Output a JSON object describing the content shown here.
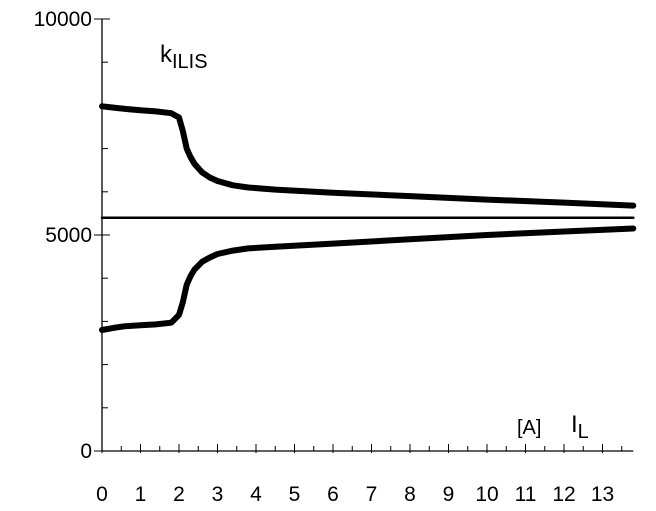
{
  "chart_data": {
    "type": "line",
    "title": "",
    "ylabel_main": "k",
    "ylabel_sub": "ILIS",
    "xunit": "[A]",
    "xlabel_main": "I",
    "xlabel_sub": "L",
    "xlim": [
      0,
      13.8
    ],
    "ylim": [
      0,
      10000
    ],
    "x_ticks": [
      "0",
      "1",
      "2",
      "3",
      "4",
      "5",
      "6",
      "7",
      "8",
      "9",
      "10",
      "11",
      "12",
      "13"
    ],
    "y_ticks": [
      {
        "value": 0,
        "label": "0"
      },
      {
        "value": 5000,
        "label": "5000"
      },
      {
        "value": 10000,
        "label": "10000"
      }
    ],
    "grid": false,
    "series": [
      {
        "line_width": "thick",
        "x": [
          0,
          0.3,
          0.6,
          1.0,
          1.4,
          1.8,
          2.0,
          2.1,
          2.2,
          2.3,
          2.4,
          2.6,
          2.8,
          3.0,
          3.4,
          3.8,
          4.5,
          6,
          8,
          10,
          12,
          13.8
        ],
        "y": [
          7980,
          7950,
          7920,
          7890,
          7860,
          7820,
          7720,
          7400,
          7000,
          6800,
          6650,
          6450,
          6330,
          6250,
          6150,
          6100,
          6050,
          5980,
          5900,
          5820,
          5750,
          5680
        ]
      },
      {
        "line_width": "thin",
        "x": [
          0,
          13.8
        ],
        "y": [
          5400,
          5400
        ]
      },
      {
        "line_width": "thick",
        "x": [
          0,
          0.3,
          0.6,
          1.0,
          1.4,
          1.8,
          2.0,
          2.1,
          2.2,
          2.3,
          2.4,
          2.6,
          2.8,
          3.0,
          3.4,
          3.8,
          4.5,
          6,
          8,
          10,
          12,
          13.8
        ],
        "y": [
          2800,
          2850,
          2890,
          2910,
          2930,
          2970,
          3150,
          3450,
          3850,
          4050,
          4200,
          4380,
          4480,
          4560,
          4640,
          4690,
          4730,
          4800,
          4900,
          5000,
          5080,
          5150
        ]
      }
    ]
  }
}
